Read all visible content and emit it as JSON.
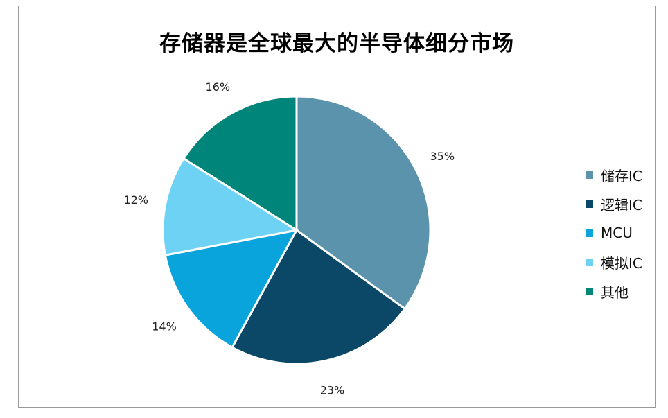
{
  "chart_data": {
    "type": "pie",
    "title": "存储器是全球最大的半导体细分市场",
    "slices": [
      {
        "name": "储存IC",
        "value": 35,
        "label": "35%",
        "color": "#5b93ad"
      },
      {
        "name": "逻辑IC",
        "value": 23,
        "label": "23%",
        "color": "#0b4766"
      },
      {
        "name": "MCU",
        "value": 14,
        "label": "14%",
        "color": "#0aa4dc"
      },
      {
        "name": "模拟IC",
        "value": 12,
        "label": "12%",
        "color": "#6ed2f4"
      },
      {
        "name": "其他",
        "value": 16,
        "label": "16%",
        "color": "#00857a"
      }
    ],
    "legend_position": "right"
  }
}
